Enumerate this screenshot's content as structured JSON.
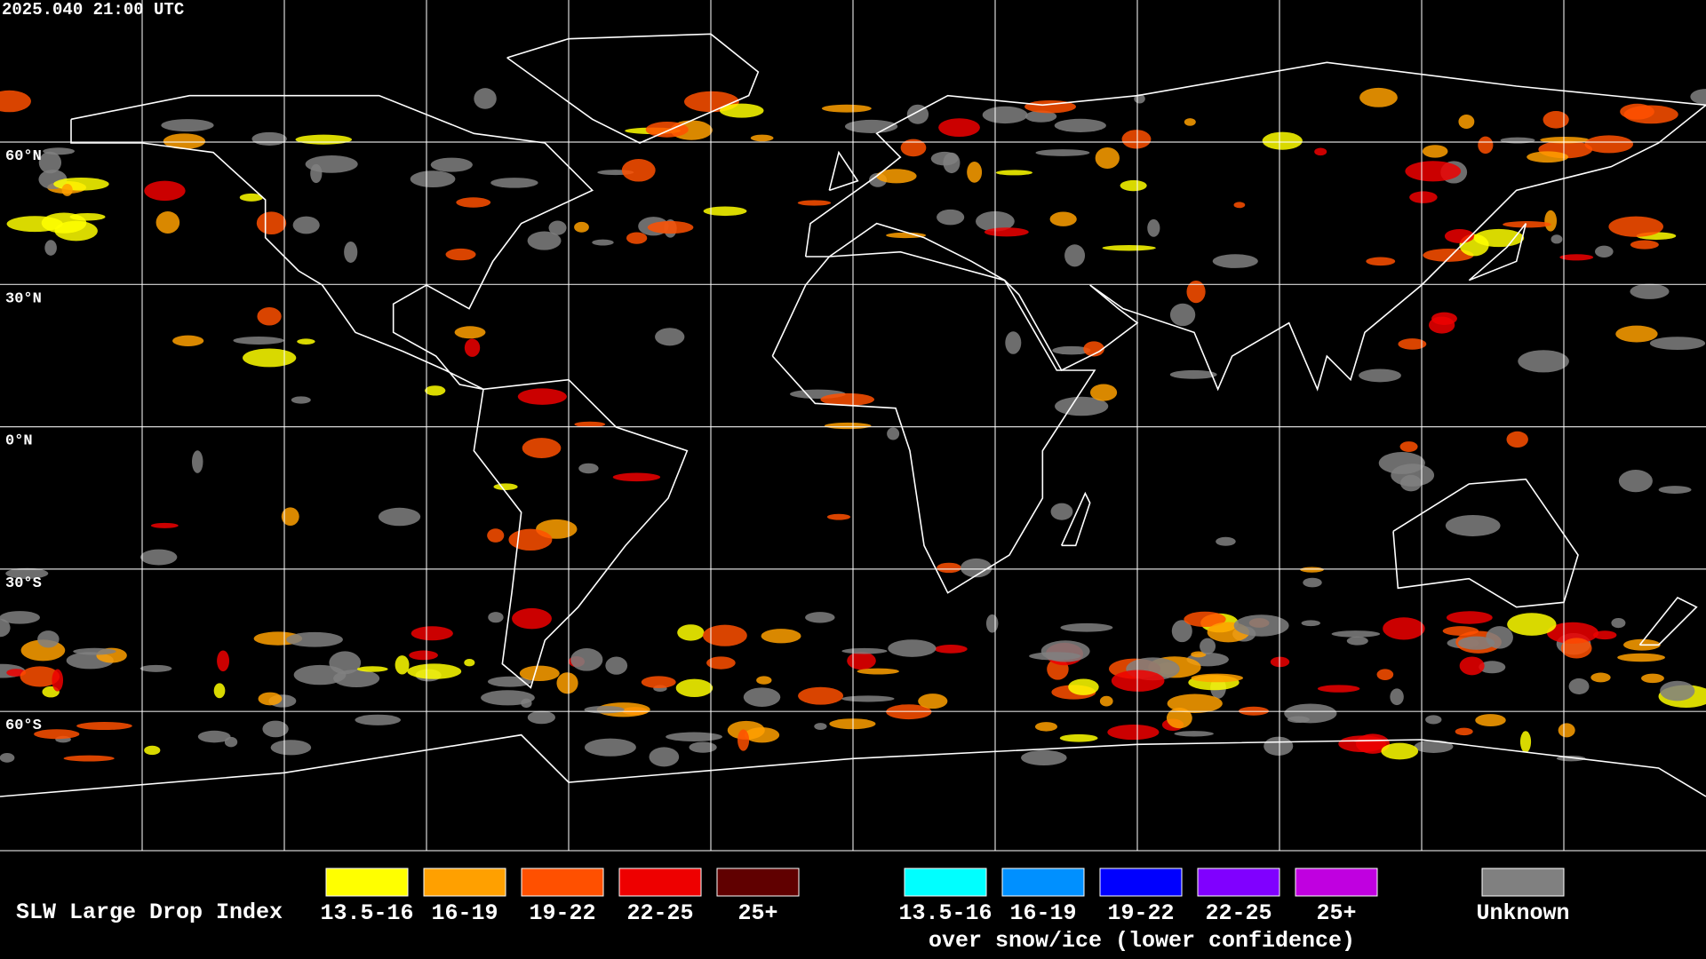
{
  "header": {
    "timestamp": "2025.040 21:00 UTC"
  },
  "map": {
    "latitude_labels": [
      "60°N",
      "30°N",
      "0°N",
      "30°S",
      "60°S"
    ]
  },
  "legend": {
    "title": "SLW Large Drop Index",
    "items": [
      {
        "label": "13.5-16",
        "color": "#ffff00"
      },
      {
        "label": "16-19",
        "color": "#ffa000"
      },
      {
        "label": "19-22",
        "color": "#ff5000"
      },
      {
        "label": "22-25",
        "color": "#ee0000"
      },
      {
        "label": "25+",
        "color": "#600000"
      }
    ],
    "snow_items": [
      {
        "label": "13.5-16",
        "color": "#00ffff"
      },
      {
        "label": "16-19",
        "color": "#0090ff"
      },
      {
        "label": "19-22",
        "color": "#0000ff"
      },
      {
        "label": "22-25",
        "color": "#8000ff"
      },
      {
        "label": "25+",
        "color": "#c000e0"
      }
    ],
    "snow_note": "over snow/ice (lower confidence)",
    "unknown": {
      "label": "Unknown",
      "color": "#808080"
    }
  }
}
